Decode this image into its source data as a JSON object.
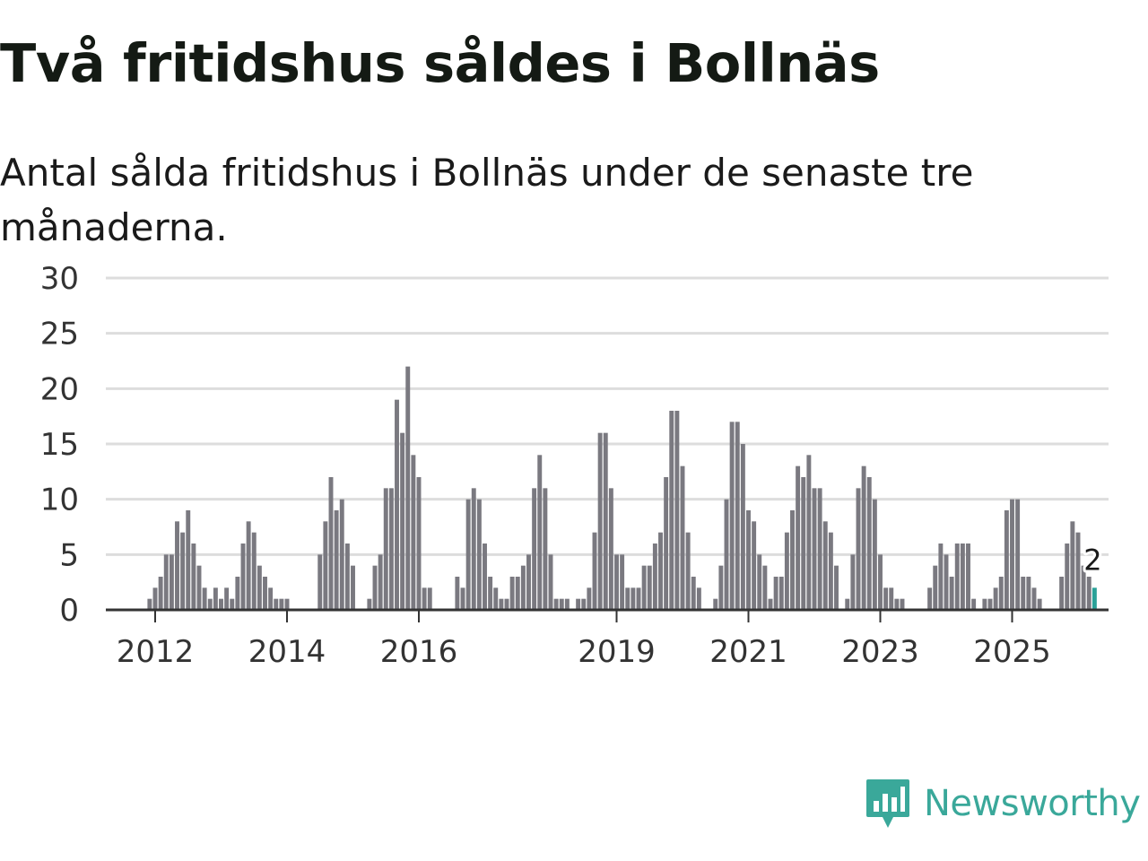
{
  "title": "Två fritidshus såldes i Bollnäs",
  "subtitle": "Antal sålda fritidshus i Bollnäs under de senaste tre månaderna.",
  "brand": {
    "name": "Newsworthy",
    "icon": "newsworthy-logo-icon"
  },
  "colors": {
    "bar": "#7a7980",
    "highlight": "#2aa198",
    "grid": "#dddddd",
    "axis": "#333333",
    "brand": "#3aa89a"
  },
  "chart_data": {
    "type": "bar",
    "title": "",
    "xlabel": "",
    "ylabel": "",
    "ylim": [
      0,
      30
    ],
    "grid": true,
    "x_ticks": [
      "2012",
      "2014",
      "2016",
      "2019",
      "2021",
      "2023",
      "2025"
    ],
    "y_ticks": [
      "0",
      "5",
      "10",
      "15",
      "20",
      "25",
      "30"
    ],
    "start_month": "2011-03",
    "frequency": "monthly",
    "values": [
      0,
      0,
      0,
      0,
      0,
      0,
      0,
      0,
      0,
      1,
      2,
      3,
      5,
      5,
      8,
      7,
      9,
      6,
      4,
      2,
      1,
      2,
      1,
      2,
      1,
      3,
      6,
      8,
      7,
      4,
      3,
      2,
      1,
      1,
      1,
      0,
      0,
      0,
      0,
      0,
      5,
      8,
      12,
      9,
      10,
      6,
      4,
      0,
      0,
      1,
      4,
      5,
      11,
      11,
      19,
      16,
      22,
      14,
      12,
      2,
      2,
      0,
      0,
      0,
      0,
      3,
      2,
      10,
      11,
      10,
      6,
      3,
      2,
      1,
      1,
      3,
      3,
      4,
      5,
      11,
      14,
      11,
      5,
      1,
      1,
      1,
      0,
      1,
      1,
      2,
      7,
      16,
      16,
      11,
      5,
      5,
      2,
      2,
      2,
      4,
      4,
      6,
      7,
      12,
      18,
      18,
      13,
      7,
      3,
      2,
      0,
      0,
      1,
      4,
      10,
      17,
      17,
      15,
      9,
      8,
      5,
      4,
      1,
      3,
      3,
      7,
      9,
      13,
      12,
      14,
      11,
      11,
      8,
      7,
      4,
      0,
      1,
      5,
      11,
      13,
      12,
      10,
      5,
      2,
      2,
      1,
      1,
      0,
      0,
      0,
      0,
      2,
      4,
      6,
      5,
      3,
      6,
      6,
      6,
      1,
      0,
      1,
      1,
      2,
      3,
      9,
      10,
      10,
      3,
      3,
      2,
      1,
      0,
      0,
      0,
      3,
      6,
      8,
      7,
      4,
      3,
      2
    ],
    "highlight_last": true,
    "last_value_label": "2"
  }
}
